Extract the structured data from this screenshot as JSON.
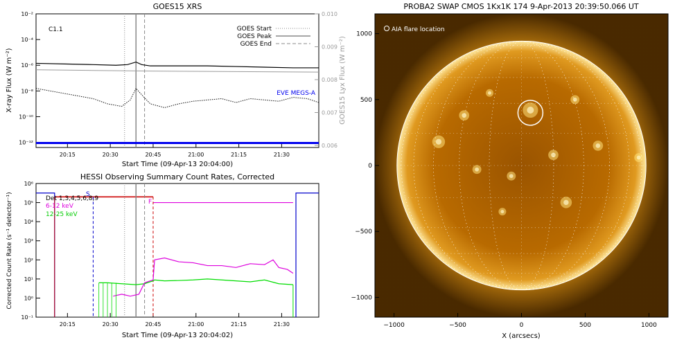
{
  "colors": {
    "goes_long": "#000000",
    "goes_short": "#111111",
    "lyx": "#9a9a9a",
    "eve": "#0000ee",
    "hessi_atten": "#0000cc",
    "hessi_decimation": "#cc0000",
    "hessi_low": "#dd00dd",
    "hessi_mid": "#00dd00",
    "sun_core": "#b86a00",
    "sun_bright": "#ffe27a",
    "marker_line": "#888888"
  },
  "chart_data": [
    {
      "type": "line",
      "title": "GOES15 XRS",
      "xlabel": "Start Time (09-Apr-13 20:04:00)",
      "ylabel": "X-ray Flux (W m⁻²)",
      "y2label": "GOES15 Lyx Flux (W m⁻²)",
      "scale": "log",
      "x_ticks": [
        "20:15",
        "20:30",
        "20:45",
        "21:00",
        "21:15",
        "21:30"
      ],
      "y_ticks": [
        "10⁻²",
        "10⁻⁴",
        "10⁻⁶",
        "10⁻⁸",
        "10⁻¹⁰",
        "10⁻¹²"
      ],
      "y2_ticks": [
        "0.010",
        "0.009",
        "0.008",
        "0.007",
        "0.006"
      ],
      "xlim_minutes": [
        0,
        99
      ],
      "ylim_log10": [
        -12.4,
        -2
      ],
      "annotation": "C1.1",
      "legend": [
        "GOES Start",
        "GOES Peak",
        "GOES End"
      ],
      "legend_position": "top-right",
      "eve_label": "EVE MEGS-A",
      "markers_minutes": {
        "start": 31,
        "peak": 35,
        "end": 38
      },
      "series": [
        {
          "name": "long",
          "x": [
            0,
            10,
            20,
            28,
            32,
            35,
            37,
            40,
            50,
            60,
            70,
            80,
            90,
            99
          ],
          "y_log10": [
            -5.85,
            -5.9,
            -5.95,
            -6.0,
            -5.95,
            -5.75,
            -5.95,
            -6.05,
            -6.05,
            -6.05,
            -6.1,
            -6.15,
            -6.2,
            -6.2
          ]
        },
        {
          "name": "short",
          "x": [
            0,
            5,
            10,
            15,
            20,
            25,
            30,
            33,
            35,
            37,
            40,
            45,
            50,
            55,
            60,
            65,
            70,
            75,
            80,
            85,
            90,
            95,
            99
          ],
          "y_log10": [
            -7.8,
            -8.0,
            -8.2,
            -8.4,
            -8.6,
            -9.0,
            -9.2,
            -8.7,
            -7.8,
            -8.3,
            -9.0,
            -9.3,
            -9.0,
            -8.8,
            -8.7,
            -8.6,
            -8.9,
            -8.6,
            -8.7,
            -8.8,
            -8.5,
            -8.6,
            -8.9
          ]
        },
        {
          "name": "lyx",
          "x": [
            0,
            20,
            40,
            60,
            80,
            99
          ],
          "y": [
            0.0083,
            0.00828,
            0.00826,
            0.00825,
            0.00824,
            0.00823
          ]
        },
        {
          "name": "EVE MEGS-A",
          "x": [
            0,
            99
          ],
          "y_log10": [
            -12.05,
            -12.05
          ]
        }
      ]
    },
    {
      "type": "line",
      "title": "HESSI Observing Summary Count Rates, Corrected",
      "xlabel": "Start Time (09-Apr-13 20:04:02)",
      "ylabel": "Corrected Count Rate (s⁻¹ detector⁻¹)",
      "scale": "log",
      "x_ticks": [
        "20:15",
        "20:30",
        "20:45",
        "21:00",
        "21:15",
        "21:30"
      ],
      "y_ticks": [
        "10⁶",
        "10⁵",
        "10⁴",
        "10³",
        "10²",
        "10¹",
        "10⁰",
        "10⁻¹"
      ],
      "ylim_log10": [
        -1,
        6
      ],
      "legend": [
        "Det 1,3,4,5,6,8,9",
        "6-12 keV",
        "12-25 keV"
      ],
      "flags": [
        "S",
        "F"
      ],
      "markers_minutes": {
        "start": 31,
        "peak": 35,
        "end": 38,
        "saa_start": 6.5,
        "saa_end": 20,
        "decim_start": 6.5,
        "decim_end": 41
      },
      "series": [
        {
          "name": "6-12 keV",
          "x": [
            27,
            30,
            33,
            36,
            38,
            40,
            41,
            41.5,
            45,
            50,
            55,
            60,
            65,
            70,
            75,
            80,
            83,
            85,
            88,
            90
          ],
          "y_log10": [
            0.1,
            0.2,
            0.1,
            0.2,
            0.8,
            0.9,
            0.95,
            2.0,
            2.1,
            1.9,
            1.85,
            1.7,
            1.7,
            1.6,
            1.8,
            1.75,
            2.0,
            1.6,
            1.5,
            1.3
          ]
        },
        {
          "name": "12-25 keV",
          "x": [
            22,
            25,
            30,
            35,
            38,
            40,
            41,
            41.5,
            45,
            50,
            55,
            60,
            65,
            70,
            75,
            80,
            85,
            90
          ],
          "y_log10": [
            0.8,
            0.8,
            0.75,
            0.7,
            0.75,
            0.85,
            0.9,
            0.95,
            0.9,
            0.92,
            0.95,
            1.0,
            0.95,
            0.9,
            0.85,
            0.95,
            0.75,
            0.7
          ]
        }
      ]
    },
    {
      "type": "image",
      "title": "PROBA2 SWAP CMOS 1Kx1K 174   9-Apr-2013 20:39:50.066 UT",
      "xlabel": "X (arcsecs)",
      "x_ticks": [
        "−1000",
        "−500",
        "0",
        "500",
        "1000"
      ],
      "y_ticks": [
        "1000",
        "500",
        "0",
        "−500",
        "−1000"
      ],
      "xlim": [
        -1150,
        1150
      ],
      "ylim": [
        -1150,
        1150
      ],
      "annotation": "AIA flare location",
      "flare_location": [
        70,
        400
      ],
      "solar_radius_arcsec": 960
    }
  ]
}
